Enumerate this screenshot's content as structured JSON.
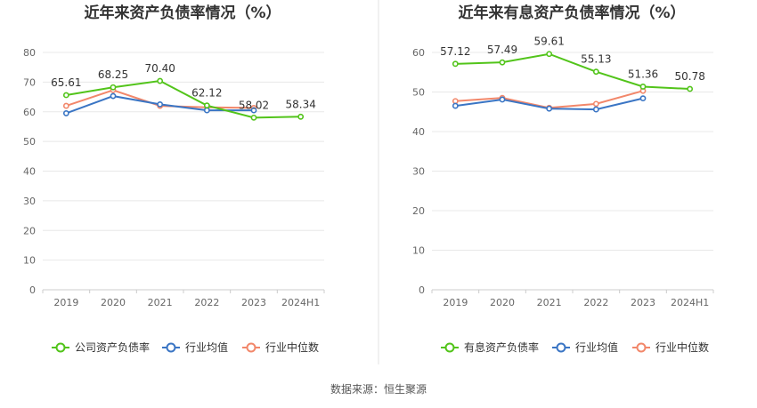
{
  "footer": {
    "source": "数据来源：恒生聚源"
  },
  "chart_data": [
    {
      "type": "line",
      "title": "近年来资产负债率情况（%）",
      "categories": [
        "2019",
        "2020",
        "2021",
        "2022",
        "2023",
        "2024H1"
      ],
      "ylim": [
        0,
        80
      ],
      "yticks": [
        0,
        10,
        20,
        30,
        40,
        50,
        60,
        70,
        80
      ],
      "grid": true,
      "legend_position": "bottom",
      "data_labels_series": 0,
      "series": [
        {
          "name": "公司资产负债率",
          "color": "#52c41a",
          "values": [
            65.61,
            68.25,
            70.4,
            62.12,
            58.02,
            58.34
          ],
          "labels": [
            "65.61",
            "68.25",
            "70.40",
            "62.12",
            "58.02",
            "58.34"
          ]
        },
        {
          "name": "行业均值",
          "color": "#3a75c4",
          "values": [
            59.5,
            65.3,
            62.5,
            60.5,
            60.5,
            null
          ]
        },
        {
          "name": "行业中位数",
          "color": "#f2876a",
          "values": [
            62.0,
            67.3,
            62.0,
            61.5,
            61.3,
            null
          ]
        }
      ]
    },
    {
      "type": "line",
      "title": "近年来有息资产负债率情况（%）",
      "categories": [
        "2019",
        "2020",
        "2021",
        "2022",
        "2023",
        "2024H1"
      ],
      "ylim": [
        0,
        60
      ],
      "yticks": [
        0,
        10,
        20,
        30,
        40,
        50,
        60
      ],
      "grid": true,
      "legend_position": "bottom",
      "data_labels_series": 0,
      "series": [
        {
          "name": "有息资产负债率",
          "color": "#52c41a",
          "values": [
            57.12,
            57.49,
            59.61,
            55.13,
            51.36,
            50.78
          ],
          "labels": [
            "57.12",
            "57.49",
            "59.61",
            "55.13",
            "51.36",
            "50.78"
          ]
        },
        {
          "name": "行业均值",
          "color": "#3a75c4",
          "values": [
            46.5,
            48.1,
            45.8,
            45.6,
            48.4,
            null
          ]
        },
        {
          "name": "行业中位数",
          "color": "#f2876a",
          "values": [
            47.7,
            48.5,
            46.0,
            47.0,
            50.3,
            null
          ]
        }
      ]
    }
  ]
}
